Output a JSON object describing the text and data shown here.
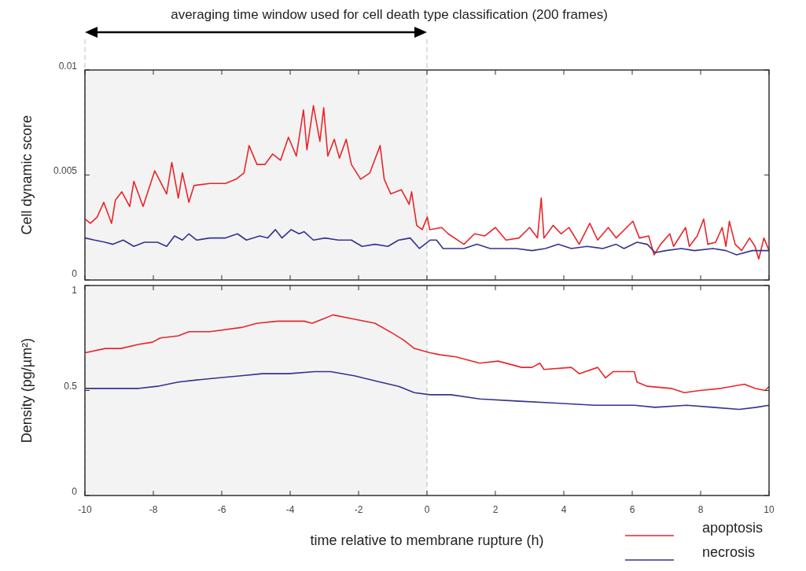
{
  "chart_data": [
    {
      "type": "line",
      "ylabel": "Cell dynamic score",
      "xlim": [
        -10,
        10
      ],
      "xticks": [
        -10,
        -8,
        -6,
        -4,
        -2,
        0,
        2,
        4,
        6,
        8,
        10
      ],
      "ylim": [
        0,
        0.01
      ],
      "yticks": [
        0,
        0.005,
        0.01
      ],
      "tick_labels": "y",
      "annotations": [
        "averaging time window used for cell death type classification (200 frames)"
      ],
      "bands": [
        {
          "axis": "x",
          "from": -10,
          "to": 0,
          "color": "#f3f3f3"
        }
      ],
      "series": [
        {
          "color": "#e8262a",
          "x": [
            -9.99,
            -9.84,
            -9.64,
            -9.45,
            -9.22,
            -9.11,
            -8.92,
            -8.69,
            -8.57,
            -8.3,
            -7.96,
            -7.61,
            -7.46,
            -7.27,
            -7.15,
            -6.96,
            -6.81,
            -6.35,
            -5.89,
            -5.58,
            -5.35,
            -5.2,
            -4.97,
            -4.74,
            -4.51,
            -4.28,
            -4.05,
            -3.82,
            -3.61,
            -3.51,
            -3.32,
            -3.13,
            -3.02,
            -2.9,
            -2.71,
            -2.56,
            -2.36,
            -2.21,
            -1.94,
            -1.67,
            -1.37,
            -1.25,
            -1.06,
            -0.75,
            -0.52,
            -0.45,
            -0.3,
            -0.14,
            0.01,
            0.08,
            0.43,
            0.62,
            1.08,
            1.39,
            1.69,
            2.0,
            2.31,
            2.69,
            3.0,
            3.23,
            3.34,
            3.42,
            3.69,
            3.92,
            4.15,
            4.45,
            4.76,
            4.99,
            5.3,
            5.53,
            6.02,
            6.21,
            6.48,
            6.64,
            6.83,
            7.1,
            7.21,
            7.56,
            7.67,
            7.9,
            8.09,
            8.21,
            8.44,
            8.63,
            8.74,
            8.84,
            9.01,
            9.2,
            9.43,
            9.59,
            9.7,
            9.85,
            10.0
          ],
          "values": [
            0.0029,
            0.0027,
            0.003,
            0.0037,
            0.0027,
            0.0038,
            0.0042,
            0.0035,
            0.0047,
            0.0035,
            0.0052,
            0.0041,
            0.0056,
            0.0039,
            0.0051,
            0.0037,
            0.0045,
            0.0046,
            0.0046,
            0.0048,
            0.0051,
            0.0064,
            0.0055,
            0.0055,
            0.006,
            0.0057,
            0.0068,
            0.0059,
            0.0081,
            0.0062,
            0.0083,
            0.0066,
            0.0082,
            0.0059,
            0.0067,
            0.0058,
            0.0067,
            0.0055,
            0.0048,
            0.0051,
            0.0064,
            0.0048,
            0.0041,
            0.0043,
            0.0036,
            0.0042,
            0.0026,
            0.0024,
            0.003,
            0.0024,
            0.0025,
            0.0022,
            0.0017,
            0.0022,
            0.0021,
            0.0025,
            0.0019,
            0.002,
            0.0025,
            0.002,
            0.0039,
            0.002,
            0.0026,
            0.0022,
            0.0025,
            0.0017,
            0.0027,
            0.0019,
            0.0025,
            0.002,
            0.0028,
            0.002,
            0.0021,
            0.0012,
            0.0017,
            0.0022,
            0.0016,
            0.0025,
            0.0016,
            0.0021,
            0.0029,
            0.0017,
            0.0018,
            0.0025,
            0.0016,
            0.0028,
            0.0017,
            0.0014,
            0.002,
            0.0016,
            0.001,
            0.002,
            0.0014
          ]
        },
        {
          "color": "#35338f",
          "x": [
            -9.99,
            -9.72,
            -9.41,
            -9.18,
            -8.88,
            -8.57,
            -8.26,
            -7.88,
            -7.61,
            -7.38,
            -7.15,
            -6.96,
            -6.73,
            -6.35,
            -5.89,
            -5.54,
            -5.28,
            -4.89,
            -4.66,
            -4.43,
            -4.24,
            -3.97,
            -3.74,
            -3.59,
            -3.32,
            -2.98,
            -2.59,
            -2.21,
            -1.9,
            -1.52,
            -1.14,
            -0.83,
            -0.49,
            -0.22,
            0.09,
            0.28,
            0.47,
            1.08,
            1.46,
            1.85,
            2.23,
            2.61,
            3.07,
            3.46,
            3.84,
            4.22,
            4.68,
            5.14,
            5.53,
            5.76,
            6.14,
            6.44,
            6.67,
            6.98,
            7.44,
            7.82,
            8.36,
            8.74,
            9.05,
            9.51,
            10.0
          ],
          "values": [
            0.002,
            0.0019,
            0.0018,
            0.0017,
            0.0019,
            0.0016,
            0.0018,
            0.0018,
            0.0016,
            0.0021,
            0.0019,
            0.0022,
            0.0019,
            0.002,
            0.002,
            0.0022,
            0.0019,
            0.0021,
            0.002,
            0.0024,
            0.002,
            0.0024,
            0.0022,
            0.0023,
            0.0019,
            0.002,
            0.0019,
            0.0019,
            0.0016,
            0.0017,
            0.0016,
            0.0019,
            0.002,
            0.0015,
            0.0019,
            0.0019,
            0.0015,
            0.0015,
            0.0017,
            0.0015,
            0.0015,
            0.0015,
            0.0014,
            0.0015,
            0.0017,
            0.0015,
            0.0016,
            0.0015,
            0.0017,
            0.0015,
            0.0018,
            0.0017,
            0.0013,
            0.0014,
            0.0015,
            0.0014,
            0.0015,
            0.0014,
            0.0012,
            0.0014,
            0.0014
          ]
        }
      ]
    },
    {
      "type": "line",
      "xlabel": "time relative to membrane rupture (h)",
      "ylabel": "Density (pg/µm²)",
      "xlim": [
        -10,
        10
      ],
      "xticks": [
        -10,
        -8,
        -6,
        -4,
        -2,
        0,
        2,
        4,
        6,
        8,
        10
      ],
      "ylim": [
        0,
        1
      ],
      "yticks": [
        0,
        0.5,
        1
      ],
      "legend": "bottom right",
      "bands": [
        {
          "axis": "x",
          "from": -10,
          "to": 0,
          "color": "#f3f3f3"
        }
      ],
      "series": [
        {
          "name": "apoptosis",
          "color": "#e8262a",
          "x": [
            -9.99,
            -9.41,
            -8.95,
            -8.42,
            -8.03,
            -7.8,
            -7.27,
            -6.96,
            -6.35,
            -5.43,
            -4.97,
            -4.36,
            -3.59,
            -3.36,
            -3.05,
            -2.75,
            -2.13,
            -1.52,
            -0.98,
            -0.68,
            -0.37,
            0.09,
            0.39,
            0.85,
            1.54,
            2.08,
            2.77,
            3.07,
            3.3,
            3.42,
            4.22,
            4.45,
            4.99,
            5.22,
            5.45,
            6.06,
            6.14,
            6.44,
            7.14,
            7.52,
            7.98,
            8.59,
            9.28,
            9.59,
            9.89,
            10.0
          ],
          "values": [
            0.68,
            0.7,
            0.7,
            0.72,
            0.73,
            0.75,
            0.76,
            0.78,
            0.78,
            0.8,
            0.82,
            0.83,
            0.83,
            0.82,
            0.84,
            0.86,
            0.84,
            0.82,
            0.77,
            0.74,
            0.7,
            0.68,
            0.67,
            0.66,
            0.63,
            0.64,
            0.61,
            0.61,
            0.63,
            0.6,
            0.61,
            0.58,
            0.61,
            0.56,
            0.59,
            0.59,
            0.54,
            0.52,
            0.51,
            0.49,
            0.5,
            0.51,
            0.53,
            0.51,
            0.5,
            0.52
          ]
        },
        {
          "name": "necrosis",
          "color": "#35338f",
          "x": [
            -9.99,
            -9.41,
            -8.8,
            -8.42,
            -7.88,
            -7.27,
            -6.73,
            -6.12,
            -5.43,
            -4.82,
            -4.05,
            -3.28,
            -2.82,
            -2.13,
            -1.37,
            -0.83,
            -0.37,
            0.09,
            0.7,
            1.54,
            2.61,
            3.76,
            4.91,
            6.06,
            6.67,
            7.59,
            8.36,
            9.13,
            9.63,
            10.0
          ],
          "values": [
            0.51,
            0.51,
            0.51,
            0.51,
            0.52,
            0.54,
            0.55,
            0.56,
            0.57,
            0.58,
            0.58,
            0.59,
            0.59,
            0.57,
            0.54,
            0.52,
            0.49,
            0.48,
            0.48,
            0.46,
            0.45,
            0.44,
            0.43,
            0.43,
            0.42,
            0.43,
            0.42,
            0.41,
            0.42,
            0.43
          ]
        }
      ]
    }
  ]
}
